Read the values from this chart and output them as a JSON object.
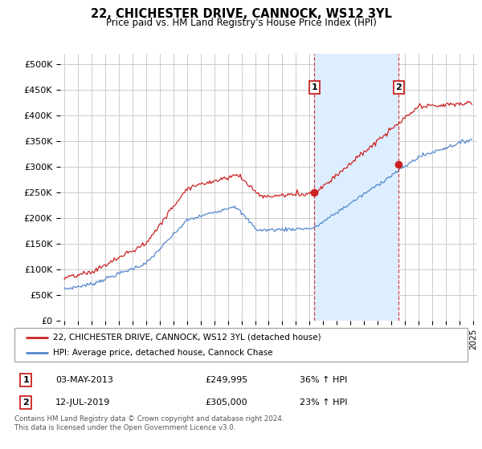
{
  "title": "22, CHICHESTER DRIVE, CANNOCK, WS12 3YL",
  "subtitle": "Price paid vs. HM Land Registry's House Price Index (HPI)",
  "hpi_color": "#5588cc",
  "price_color": "#cc2222",
  "shade_color": "#ddeeff",
  "bg_color": "#ffffff",
  "grid_color": "#cccccc",
  "sale1_date": 2013.36,
  "sale1_price": 249995,
  "sale2_date": 2019.54,
  "sale2_price": 305000,
  "ylim": [
    0,
    520000
  ],
  "yticks": [
    0,
    50000,
    100000,
    150000,
    200000,
    250000,
    300000,
    350000,
    400000,
    450000,
    500000
  ],
  "ytick_labels": [
    "£0",
    "£50K",
    "£100K",
    "£150K",
    "£200K",
    "£250K",
    "£300K",
    "£350K",
    "£400K",
    "£450K",
    "£500K"
  ],
  "xmin": 1994.7,
  "xmax": 2025.3,
  "legend_line1": "22, CHICHESTER DRIVE, CANNOCK, WS12 3YL (detached house)",
  "legend_line2": "HPI: Average price, detached house, Cannock Chase",
  "table_row1": [
    "1",
    "03-MAY-2013",
    "£249,995",
    "36% ↑ HPI"
  ],
  "table_row2": [
    "2",
    "12-JUL-2019",
    "£305,000",
    "23% ↑ HPI"
  ],
  "footnote": "Contains HM Land Registry data © Crown copyright and database right 2024.\nThis data is licensed under the Open Government Licence v3.0."
}
